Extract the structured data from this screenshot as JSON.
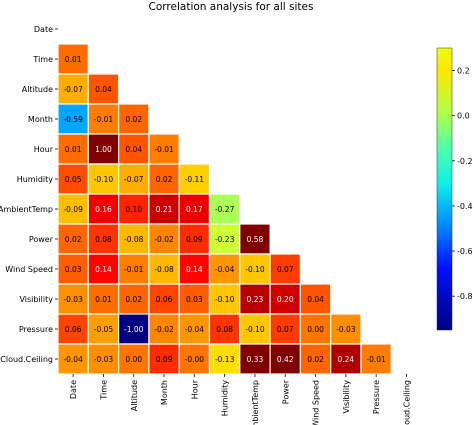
{
  "chart_data": {
    "type": "heatmap",
    "title": "Correlation analysis for all sites",
    "row_labels": [
      "Date",
      "Time",
      "Altitude",
      "Month",
      "Hour",
      "Humidity",
      "AmbientTemp",
      "Power",
      "Wind Speed",
      "Visibility",
      "Pressure",
      "Cloud.Ceiling"
    ],
    "col_labels": [
      "Date",
      "Time",
      "Altitude",
      "Month",
      "Hour",
      "Humidity",
      "AmbientTemp",
      "Power",
      "Wind Speed",
      "Visibility",
      "Pressure",
      "Cloud.Ceiling"
    ],
    "mask": "upper-triangle-including-diagonal",
    "values": [
      [],
      [
        "0.01"
      ],
      [
        "-0.07",
        "0.04"
      ],
      [
        "-0.59",
        "-0.01",
        "0.02"
      ],
      [
        "0.01",
        "1.00",
        "0.04",
        "-0.01"
      ],
      [
        "0.05",
        "-0.10",
        "-0.07",
        "0.02",
        "-0.11"
      ],
      [
        "-0.09",
        "0.16",
        "0.10",
        "0.21",
        "0.17",
        "-0.27"
      ],
      [
        "0.02",
        "0.08",
        "-0.08",
        "-0.02",
        "0.09",
        "-0.23",
        "0.58"
      ],
      [
        "0.03",
        "0.14",
        "-0.01",
        "-0.08",
        "0.14",
        "-0.04",
        "-0.10",
        "0.07"
      ],
      [
        "-0.03",
        "0.01",
        "0.02",
        "0.06",
        "0.03",
        "-0.10",
        "0.23",
        "0.20",
        "0.04"
      ],
      [
        "0.06",
        "-0.05",
        "-1.00",
        "-0.02",
        "-0.04",
        "0.08",
        "-0.10",
        "0.07",
        "0.00",
        "-0.03"
      ],
      [
        "-0.04",
        "-0.03",
        "0.00",
        "0.09",
        "-0.00",
        "-0.13",
        "0.33",
        "0.42",
        "0.02",
        "0.24",
        "-0.01"
      ]
    ],
    "colormap": "jet",
    "colorbar": {
      "ticks": [
        "0.2",
        "0.0",
        "-0.2",
        "-0.4",
        "-0.6",
        "-0.8"
      ],
      "display_range": [
        -0.95,
        0.3
      ]
    },
    "cell_border_color": "#ffffff"
  }
}
